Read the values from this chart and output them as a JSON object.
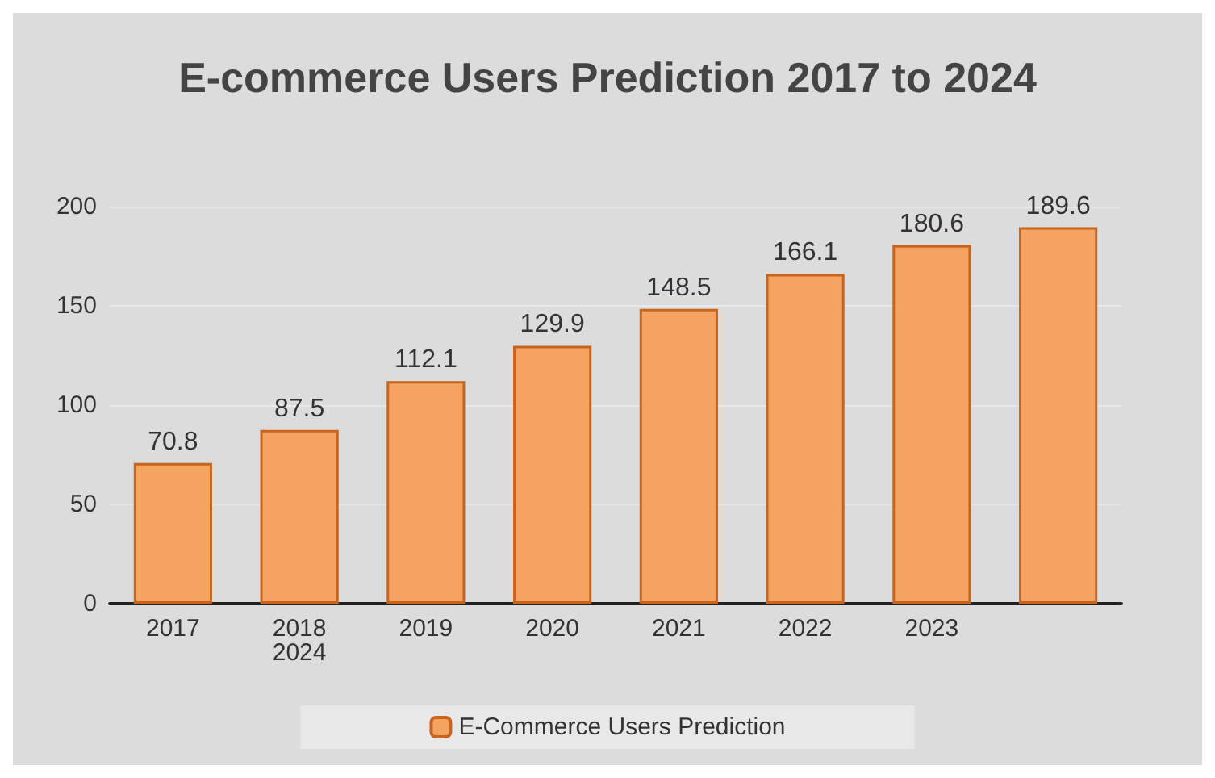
{
  "chart_data": {
    "type": "bar",
    "title": "E-commerce Users Prediction 2017 to 2024",
    "categories": [
      "2017",
      "2018\n2024",
      "2019",
      "2020",
      "2021",
      "2022",
      "2023",
      null
    ],
    "series": [
      {
        "name": "E-Commerce Users Prediction",
        "color": "#f4a460",
        "values": [
          70.8,
          87.5,
          112.1,
          129.9,
          148.5,
          166.1,
          180.6,
          189.6
        ]
      }
    ],
    "ylim": [
      0,
      200
    ],
    "yticks": [
      0,
      50,
      100,
      150,
      200
    ],
    "grid": "y",
    "legend": "bottom",
    "data_labels": true
  }
}
